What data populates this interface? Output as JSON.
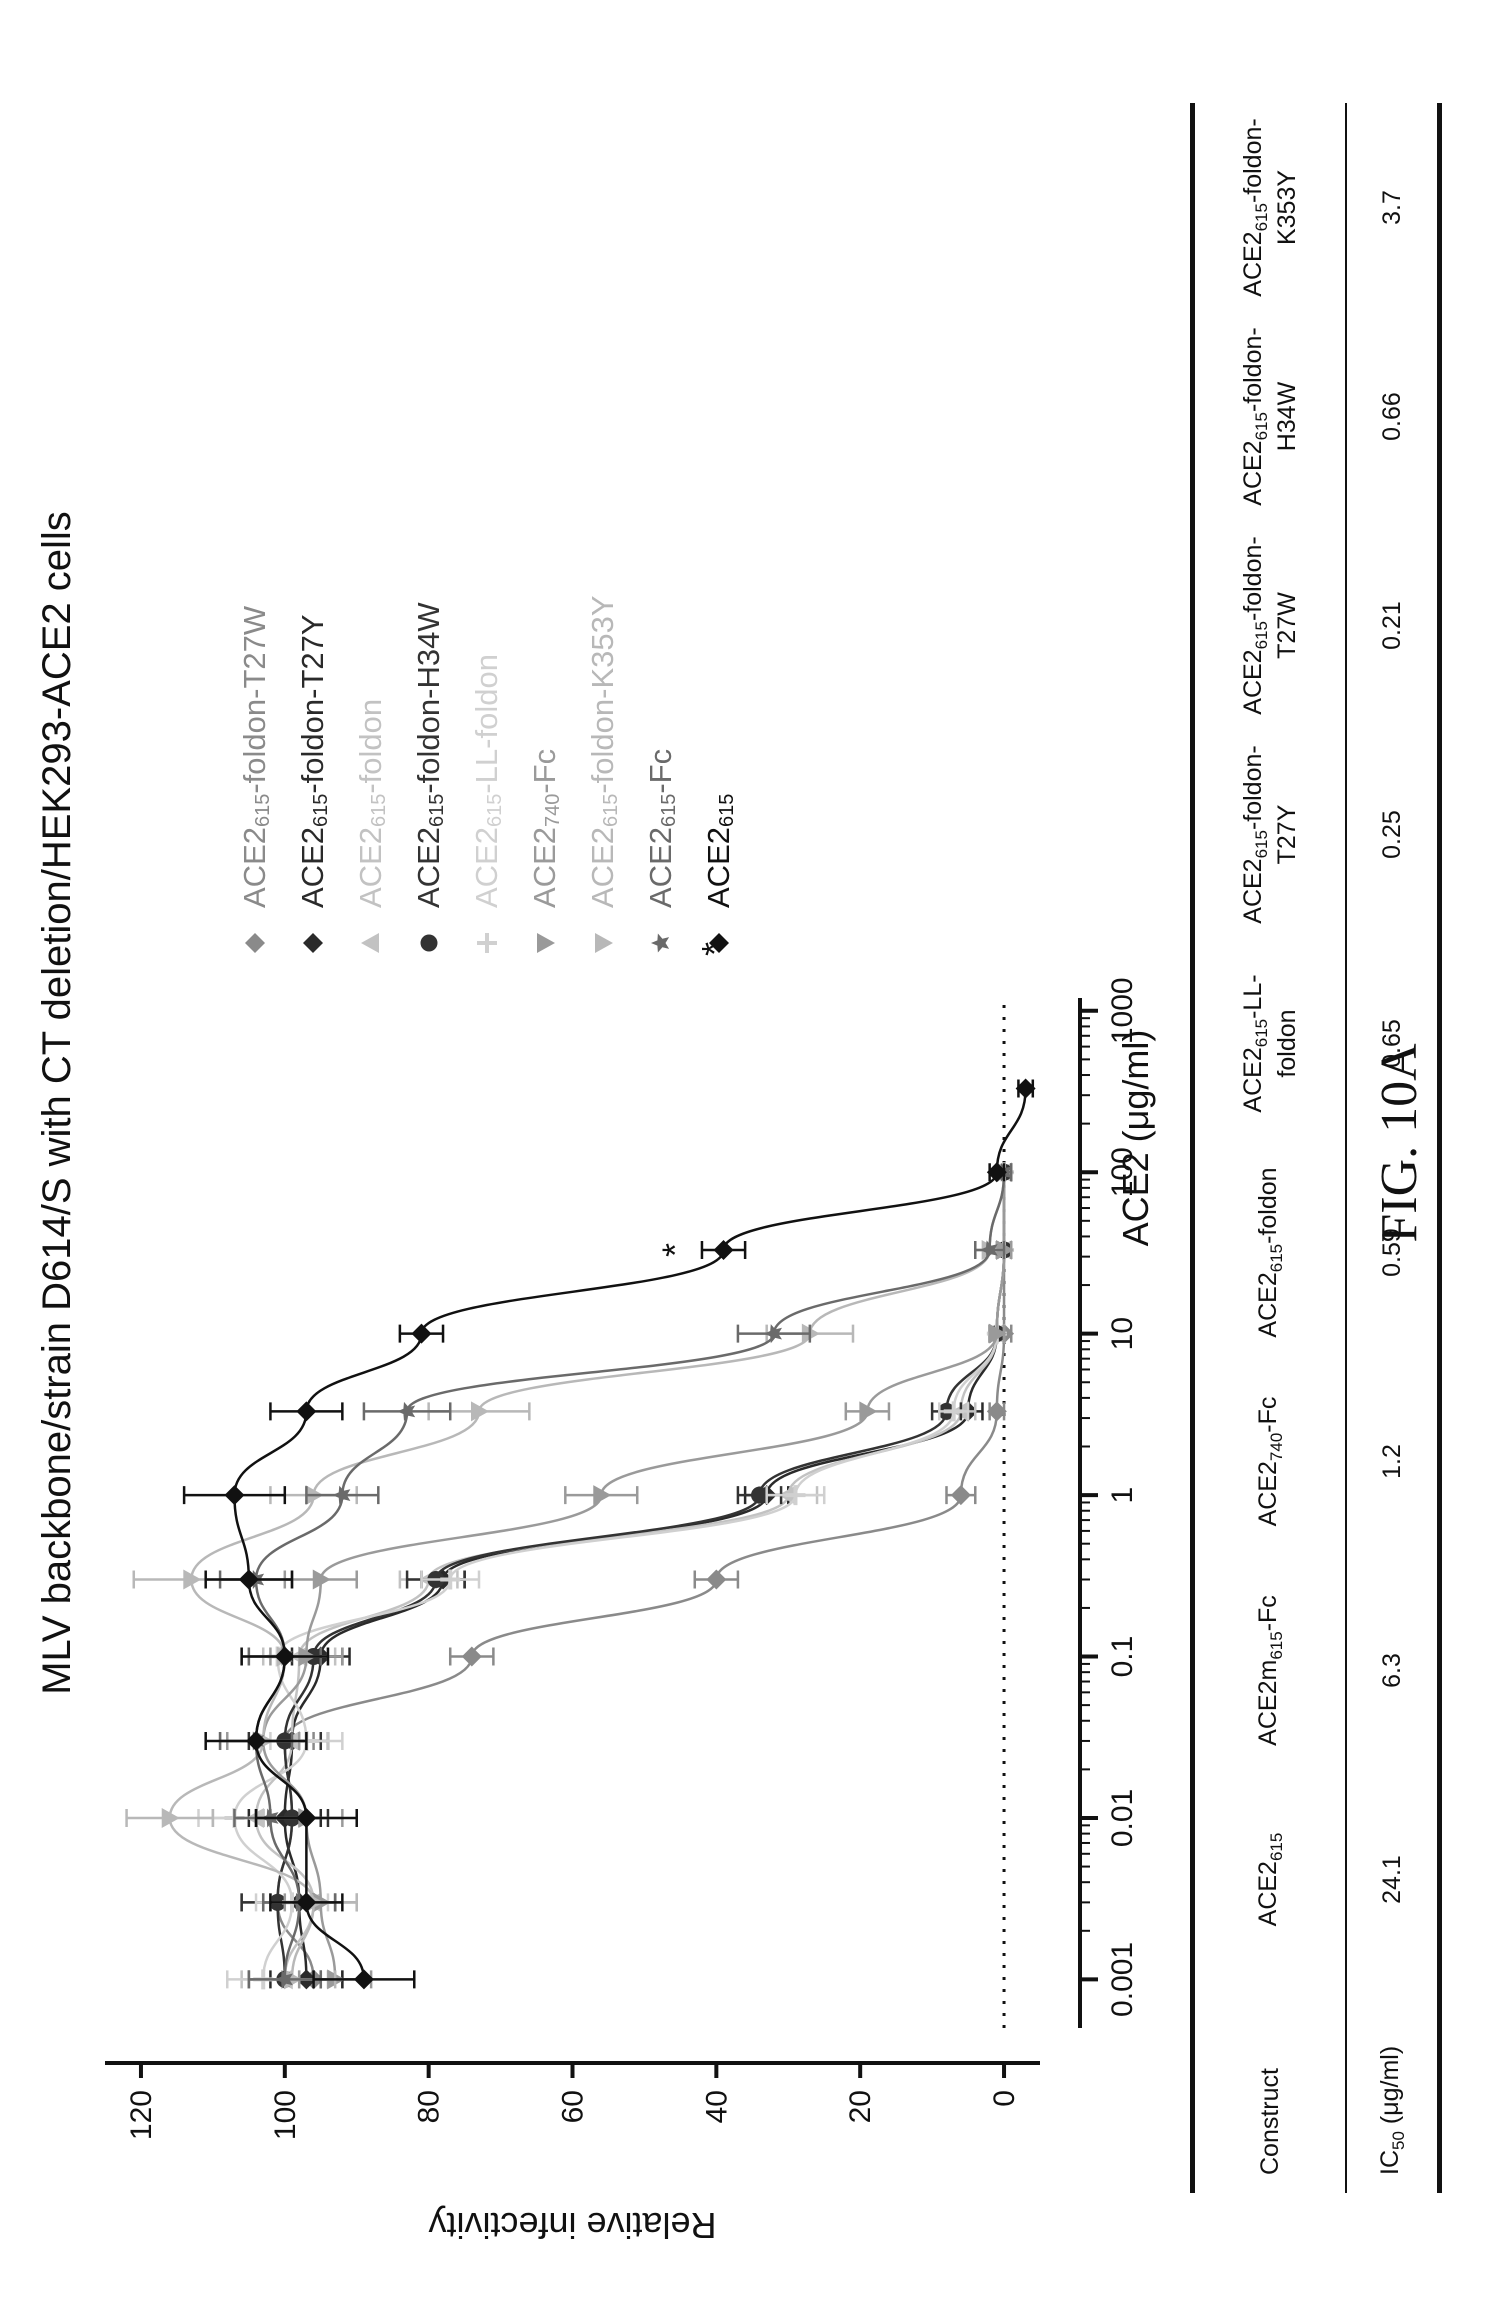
{
  "chart_data": {
    "type": "scatter",
    "title": "MLV backbone/strain D614/S with CT deletion/HEK293-ACE2 cells",
    "xlabel": "ACE2 (μg/ml)",
    "ylabel": "Relative infectivity",
    "x_scale": "log",
    "xlim": [
      0.0005,
      1200
    ],
    "ylim": [
      -5,
      125
    ],
    "x_ticks": [
      0.001,
      0.01,
      0.1,
      1,
      10,
      100,
      1000
    ],
    "x_tick_labels": [
      "0.001",
      "0.01",
      "0.1",
      "1",
      "10",
      "100",
      "1000"
    ],
    "y_ticks": [
      0,
      20,
      40,
      60,
      80,
      100,
      120
    ],
    "y_tick_labels": [
      "0",
      "20",
      "40",
      "60",
      "80",
      "100",
      "120"
    ],
    "reference_line_y": 0,
    "legend_position": "right",
    "series": [
      {
        "name": "ACE2615-foldon-T27W",
        "color": "#8a8a8a",
        "marker": "diamond",
        "x": [
          0.001,
          0.003,
          0.01,
          0.03,
          0.1,
          0.3,
          1,
          3.3,
          10,
          33,
          100
        ],
        "y": [
          96,
          101,
          99,
          100,
          74,
          40,
          6,
          1,
          0,
          0,
          0
        ],
        "err": [
          4,
          5,
          4,
          4,
          3,
          3,
          2,
          1,
          1,
          1,
          1
        ]
      },
      {
        "name": "ACE2615-foldon-T27Y",
        "color": "#2a2a2a",
        "marker": "diamond",
        "x": [
          0.001,
          0.003,
          0.01,
          0.03,
          0.1,
          0.3,
          1,
          3.3,
          10,
          33,
          100
        ],
        "y": [
          97,
          98,
          100,
          99,
          95,
          78,
          33,
          5,
          1,
          0,
          0
        ],
        "err": [
          5,
          5,
          5,
          5,
          4,
          3,
          3,
          2,
          1,
          1,
          1
        ]
      },
      {
        "name": "ACE2615-foldon",
        "color": "#c2c2c2",
        "marker": "triangle-up",
        "x": [
          0.001,
          0.003,
          0.01,
          0.03,
          0.1,
          0.3,
          1,
          3.3,
          10,
          33,
          100
        ],
        "y": [
          100,
          96,
          104,
          99,
          98,
          80,
          30,
          6,
          1,
          0,
          0
        ],
        "err": [
          6,
          6,
          6,
          5,
          5,
          4,
          4,
          2,
          1,
          1,
          1
        ]
      },
      {
        "name": "ACE2615-foldon-H34W",
        "color": "#333333",
        "marker": "circle",
        "x": [
          0.001,
          0.003,
          0.01,
          0.03,
          0.1,
          0.3,
          1,
          3.3,
          10,
          33,
          100
        ],
        "y": [
          100,
          101,
          99,
          100,
          96,
          79,
          34,
          8,
          1,
          0,
          0
        ],
        "err": [
          5,
          5,
          5,
          5,
          4,
          4,
          3,
          2,
          1,
          1,
          1
        ]
      },
      {
        "name": "ACE2615-LL-foldon",
        "color": "#d0d0d0",
        "marker": "plus",
        "x": [
          0.001,
          0.003,
          0.01,
          0.03,
          0.1,
          0.3,
          1,
          3.3,
          10,
          33,
          100
        ],
        "y": [
          103,
          99,
          107,
          97,
          101,
          77,
          29,
          7,
          1,
          0,
          0
        ],
        "err": [
          5,
          5,
          5,
          5,
          4,
          4,
          4,
          2,
          1,
          1,
          1
        ]
      },
      {
        "name": "ACE2740-Fc",
        "color": "#9a9a9a",
        "marker": "triangle-down",
        "x": [
          0.001,
          0.003,
          0.01,
          0.03,
          0.1,
          0.3,
          1,
          3.3,
          10,
          33,
          100
        ],
        "y": [
          93,
          95,
          97,
          103,
          97,
          95,
          56,
          19,
          1,
          0,
          0
        ],
        "err": [
          5,
          5,
          5,
          5,
          5,
          5,
          5,
          3,
          1,
          1,
          1
        ]
      },
      {
        "name": "ACE2615-foldon-K353Y",
        "color": "#b8b8b8",
        "marker": "triangle-down",
        "x": [
          0.001,
          0.003,
          0.01,
          0.03,
          0.1,
          0.3,
          1,
          3.3,
          10,
          33,
          100
        ],
        "y": [
          99,
          96,
          116,
          103,
          100,
          113,
          96,
          73,
          27,
          2,
          0
        ],
        "err": [
          6,
          6,
          6,
          6,
          6,
          8,
          6,
          7,
          6,
          2,
          1
        ]
      },
      {
        "name": "ACE2615-Fc",
        "color": "#6a6a6a",
        "marker": "star",
        "x": [
          0.001,
          0.003,
          0.01,
          0.03,
          0.1,
          0.3,
          1,
          3.3,
          10,
          33,
          100
        ],
        "y": [
          100,
          98,
          102,
          104,
          100,
          104,
          92,
          83,
          32,
          2,
          0
        ],
        "err": [
          5,
          5,
          5,
          5,
          5,
          5,
          5,
          6,
          5,
          2,
          1
        ]
      },
      {
        "name": "ACE2615",
        "color": "#111111",
        "marker": "diamond",
        "x": [
          0.001,
          0.003,
          0.01,
          0.03,
          0.1,
          0.3,
          1,
          3.3,
          10,
          33,
          100,
          330
        ],
        "y": [
          89,
          97,
          97,
          104,
          100,
          105,
          107,
          97,
          81,
          39,
          1,
          -3
        ],
        "err": [
          7,
          5,
          7,
          7,
          6,
          6,
          7,
          5,
          3,
          3,
          1,
          1
        ]
      }
    ],
    "annotations": [
      {
        "text": "*",
        "x": 33,
        "y": 44
      }
    ]
  },
  "legend": {
    "star_marker_text": "*"
  },
  "table": {
    "row_headers": [
      "Construct",
      "IC50 (μg/ml)"
    ],
    "constructs": [
      "ACE2615",
      "ACE2m615-Fc",
      "ACE2740-Fc",
      "ACE2615-foldon",
      "ACE2615-LL-foldon",
      "ACE2615-foldon-T27Y",
      "ACE2615-foldon-T27W",
      "ACE2615-foldon-H34W",
      "ACE2615-foldon-K353Y"
    ],
    "ic50": [
      "24.1",
      "6.3",
      "1.2",
      "0.59",
      "0.65",
      "0.25",
      "0.21",
      "0.66",
      "3.7"
    ]
  },
  "figure_label": "FIG. 10A"
}
